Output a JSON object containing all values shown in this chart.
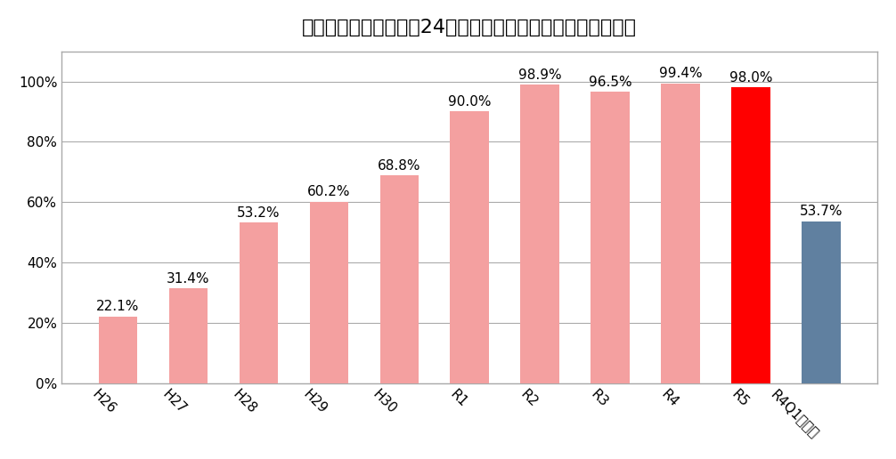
{
  "categories": [
    "H26",
    "H27",
    "H28",
    "H29",
    "H30",
    "R1",
    "R2",
    "R3",
    "R4",
    "R5",
    "R4Q1平均値"
  ],
  "values": [
    22.1,
    31.4,
    53.2,
    60.2,
    68.8,
    90.0,
    98.9,
    96.5,
    99.4,
    98.0,
    53.7
  ],
  "bar_colors": [
    "#F4A0A0",
    "#F4A0A0",
    "#F4A0A0",
    "#F4A0A0",
    "#F4A0A0",
    "#F4A0A0",
    "#F4A0A0",
    "#F4A0A0",
    "#F4A0A0",
    "#FF0000",
    "#6080A0"
  ],
  "title": "特定術式における術後24時間以内の予防的抗菌薬投与停止率",
  "ylim": [
    0,
    110
  ],
  "yticks": [
    0,
    20,
    40,
    60,
    80,
    100
  ],
  "ytick_labels": [
    "0%",
    "20%",
    "40%",
    "60%",
    "80%",
    "100%"
  ],
  "background_color": "#ffffff",
  "frame_color": "#aaaaaa",
  "grid_color": "#aaaaaa",
  "title_fontsize": 16,
  "tick_fontsize": 11,
  "value_fontsize": 11,
  "bar_width": 0.55
}
